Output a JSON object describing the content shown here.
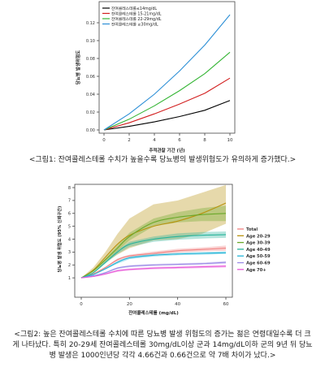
{
  "chart_data": [
    {
      "type": "line",
      "xlabel": "추적관찰 기간 (년)",
      "ylabel": "당뇨병 발생위험도",
      "xlim": [
        0,
        10
      ],
      "ylim": [
        0,
        0.14
      ],
      "x_ticks": [
        "0",
        "2",
        "4",
        "6",
        "8",
        "10"
      ],
      "y_ticks": [
        "0.00",
        "0.02",
        "0.04",
        "0.06",
        "0.08",
        "0.10",
        "0.12"
      ],
      "legend_position": "top-left",
      "grid": false,
      "series": [
        {
          "name": "잔여콜레스테롤≤14mg/dL",
          "color": "#000000",
          "x": [
            0,
            2,
            4,
            6,
            8,
            10
          ],
          "y": [
            0,
            0.004,
            0.009,
            0.015,
            0.022,
            0.033
          ]
        },
        {
          "name": "잔여콜레스테롤 15-21mg/dL",
          "color": "#d21e1e",
          "x": [
            0,
            2,
            4,
            6,
            8,
            10
          ],
          "y": [
            0,
            0.008,
            0.018,
            0.029,
            0.041,
            0.058
          ]
        },
        {
          "name": "잔여콜레스테롤 22-29mg/dL",
          "color": "#35b535",
          "x": [
            0,
            2,
            4,
            6,
            8,
            10
          ],
          "y": [
            0,
            0.012,
            0.027,
            0.044,
            0.063,
            0.087
          ]
        },
        {
          "name": "잔여콜레스테롤 ≥30mg/dL",
          "color": "#2c8fd6",
          "x": [
            0,
            2,
            4,
            6,
            8,
            10
          ],
          "y": [
            0,
            0.018,
            0.04,
            0.066,
            0.095,
            0.129
          ]
        }
      ]
    },
    {
      "type": "line",
      "xlabel": "잔여콜레스테롤 (mg/dL)",
      "ylabel": "당뇨병 발생 위험도 (95% 신뢰구간)",
      "xlim": [
        0,
        60
      ],
      "ylim": [
        0,
        8
      ],
      "x_ticks": [
        "0",
        "20",
        "40",
        "60"
      ],
      "y_ticks": [
        "1",
        "2",
        "3",
        "4",
        "5",
        "6",
        "7",
        "8"
      ],
      "legend_position": "right",
      "grid": false,
      "series": [
        {
          "name": "Total",
          "color": "#f08080",
          "x": [
            0,
            5,
            10,
            15,
            20,
            30,
            40,
            50,
            60
          ],
          "y": [
            1,
            1.3,
            1.8,
            2.4,
            2.7,
            2.9,
            3.1,
            3.2,
            3.3
          ],
          "lower": [
            1,
            1.25,
            1.75,
            2.3,
            2.6,
            2.75,
            2.95,
            3.05,
            3.1
          ],
          "upper": [
            1,
            1.35,
            1.85,
            2.5,
            2.8,
            3.05,
            3.25,
            3.35,
            3.5
          ]
        },
        {
          "name": "Age 20-29",
          "color": "#b8920e",
          "x": [
            0,
            5,
            10,
            15,
            20,
            30,
            40,
            50,
            60
          ],
          "y": [
            1,
            1.6,
            2.6,
            3.6,
            4.3,
            5.0,
            5.4,
            6.0,
            6.8
          ],
          "lower": [
            1,
            1.45,
            2.2,
            2.8,
            3.3,
            3.9,
            4.0,
            4.4,
            5.2
          ],
          "upper": [
            1,
            1.8,
            3.0,
            4.4,
            5.6,
            6.7,
            7.0,
            7.6,
            8.2
          ]
        },
        {
          "name": "Age 30-39",
          "color": "#6aa82a",
          "x": [
            0,
            5,
            10,
            15,
            20,
            30,
            40,
            50,
            60
          ],
          "y": [
            1,
            1.55,
            2.4,
            3.3,
            4.2,
            5.3,
            5.7,
            5.9,
            6.0
          ],
          "lower": [
            1,
            1.5,
            2.3,
            3.1,
            3.9,
            5.0,
            5.3,
            5.4,
            5.4
          ],
          "upper": [
            1,
            1.6,
            2.5,
            3.5,
            4.5,
            5.6,
            6.1,
            6.4,
            6.6
          ]
        },
        {
          "name": "Age 40-49",
          "color": "#27b39a",
          "x": [
            0,
            5,
            10,
            15,
            20,
            30,
            40,
            50,
            60
          ],
          "y": [
            1,
            1.4,
            2.2,
            3.0,
            3.6,
            4.0,
            4.2,
            4.3,
            4.35
          ],
          "lower": [
            1,
            1.35,
            2.1,
            2.85,
            3.4,
            3.8,
            3.95,
            4.05,
            4.1
          ],
          "upper": [
            1,
            1.45,
            2.3,
            3.15,
            3.8,
            4.2,
            4.45,
            4.55,
            4.6
          ]
        },
        {
          "name": "Age 50-59",
          "color": "#23b5d8",
          "x": [
            0,
            5,
            10,
            15,
            20,
            30,
            40,
            50,
            60
          ],
          "y": [
            1,
            1.25,
            1.7,
            2.2,
            2.55,
            2.75,
            2.85,
            2.9,
            2.95
          ],
          "lower": [
            1,
            1.22,
            1.65,
            2.1,
            2.45,
            2.65,
            2.75,
            2.8,
            2.85
          ],
          "upper": [
            1,
            1.28,
            1.75,
            2.3,
            2.65,
            2.85,
            2.95,
            3.0,
            3.05
          ]
        },
        {
          "name": "Age 60-69",
          "color": "#9a8ae6",
          "x": [
            0,
            5,
            10,
            15,
            20,
            30,
            40,
            50,
            60
          ],
          "y": [
            1,
            1.15,
            1.4,
            1.75,
            1.9,
            2.0,
            2.05,
            2.1,
            2.2
          ],
          "lower": [
            1,
            1.12,
            1.35,
            1.68,
            1.82,
            1.92,
            1.97,
            2.02,
            2.1
          ],
          "upper": [
            1,
            1.18,
            1.45,
            1.82,
            1.98,
            2.08,
            2.13,
            2.18,
            2.3
          ]
        },
        {
          "name": "Age 70+",
          "color": "#e85ad8",
          "x": [
            0,
            5,
            10,
            15,
            20,
            30,
            40,
            50,
            60
          ],
          "y": [
            1,
            1.1,
            1.3,
            1.55,
            1.65,
            1.75,
            1.8,
            1.85,
            1.9
          ],
          "lower": [
            1,
            1.07,
            1.25,
            1.47,
            1.57,
            1.66,
            1.71,
            1.75,
            1.8
          ],
          "upper": [
            1,
            1.13,
            1.35,
            1.63,
            1.73,
            1.84,
            1.89,
            1.95,
            2.0
          ]
        }
      ]
    }
  ],
  "captions": {
    "figure1": "<그림1: 잔여콜레스테롤 수치가 높을수록 당뇨병의 발생위험도가 유의하게 증가했다.>",
    "figure2": "<그림2: 높은 잔여콜레스테롤 수치에 따른 당뇨병 발생 위험도의 증가는 젊은 연령대일수록 더 크게 나타났다. 특히 20-29세 잔여콜레스테롤 30mg/dL이상 군과 14mg/dL이하 군의 9년 뒤 당뇨병 발생은 1000인년당 각각 4.66건과 0.66건으로 약 7배 차이가 났다.>"
  }
}
